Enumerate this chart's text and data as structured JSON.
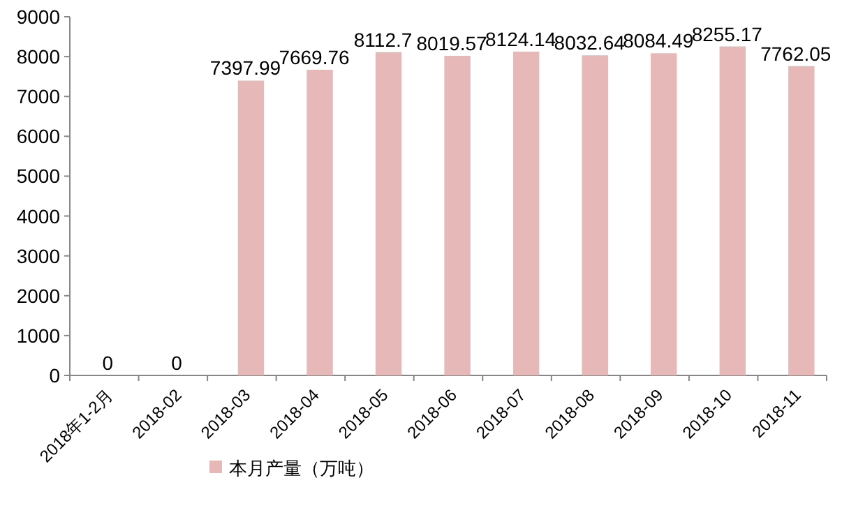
{
  "chart_data": {
    "type": "bar",
    "categories": [
      "2018年1-2月",
      "2018-02",
      "2018-03",
      "2018-04",
      "2018-05",
      "2018-06",
      "2018-07",
      "2018-08",
      "2018-09",
      "2018-10",
      "2018-11"
    ],
    "series": [
      {
        "name": "本月产量（万吨）",
        "color": "#e6b8b7",
        "values": [
          0,
          0,
          7397.99,
          7669.76,
          8112.7,
          8019.57,
          8124.14,
          8032.64,
          8084.49,
          8255.17,
          7762.05
        ]
      }
    ],
    "ylim": [
      0,
      9000
    ],
    "yticks": [
      0,
      1000,
      2000,
      3000,
      4000,
      5000,
      6000,
      7000,
      8000,
      9000
    ],
    "data_labels": true,
    "legend": "bottom",
    "grid": false
  }
}
